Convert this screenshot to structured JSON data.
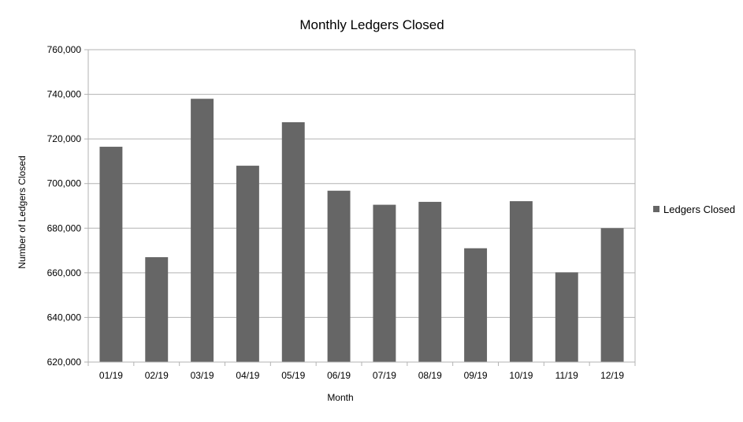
{
  "chart_data": {
    "type": "bar",
    "title": "Monthly Ledgers Closed",
    "xlabel": "Month",
    "ylabel": "Number of Ledgers Closed",
    "categories": [
      "01/19",
      "02/19",
      "03/19",
      "04/19",
      "05/19",
      "06/19",
      "07/19",
      "08/19",
      "09/19",
      "10/19",
      "11/19",
      "12/19"
    ],
    "series": [
      {
        "name": "Ledgers Closed",
        "color": "#666666",
        "values": [
          716500,
          667000,
          738000,
          708000,
          727500,
          696800,
          690500,
          691800,
          671000,
          692100,
          660200,
          680000
        ]
      }
    ],
    "ylim": [
      620000,
      760000
    ],
    "yticks": [
      620000,
      640000,
      660000,
      680000,
      700000,
      720000,
      740000,
      760000
    ],
    "ytick_labels": [
      "620,000",
      "640,000",
      "660,000",
      "680,000",
      "700,000",
      "720,000",
      "740,000",
      "760,000"
    ],
    "grid": true,
    "legend_position": "right"
  }
}
